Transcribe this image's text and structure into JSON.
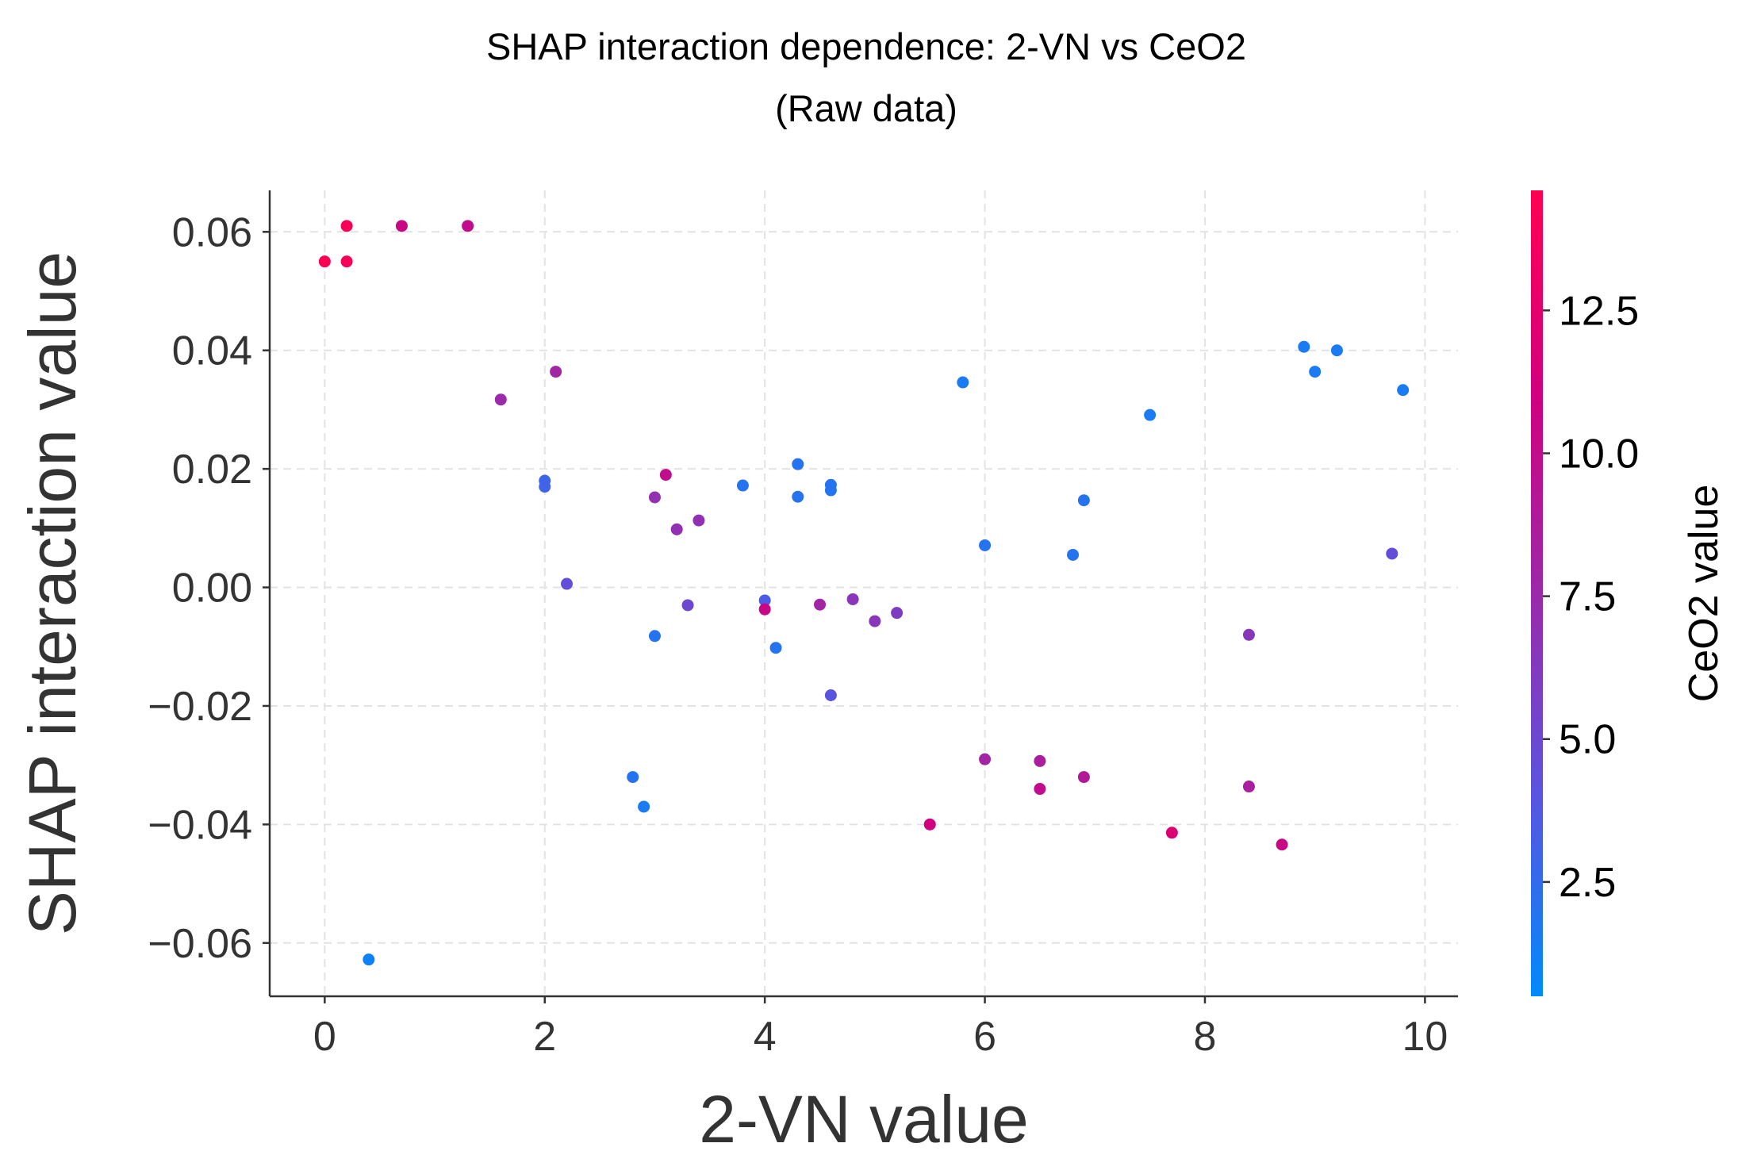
{
  "chart_data": {
    "type": "scatter",
    "title": "SHAP interaction dependence: 2-VN vs CeO2",
    "subtitle": "(Raw data)",
    "xlabel": "2-VN value",
    "ylabel": "SHAP interaction value",
    "xlim": [
      -0.5,
      10.3
    ],
    "ylim": [
      -0.069,
      0.067
    ],
    "x_ticks": [
      0,
      2,
      4,
      6,
      8,
      10
    ],
    "x_tick_labels": [
      "0",
      "2",
      "4",
      "6",
      "8",
      "10"
    ],
    "y_ticks": [
      0.06,
      0.04,
      0.02,
      0.0,
      -0.02,
      -0.04,
      -0.06
    ],
    "y_tick_labels": [
      "0.06",
      "0.04",
      "0.02",
      "0.00",
      "−0.02",
      "−0.04",
      "−0.06"
    ],
    "grid": true,
    "colorbar": {
      "label": "CeO2 value",
      "range": [
        0.5,
        14.6
      ],
      "ticks": [
        2.5,
        5.0,
        7.5,
        10.0,
        12.5
      ],
      "tick_labels": [
        "2.5",
        "5.0",
        "7.5",
        "10.0",
        "12.5"
      ],
      "colors": [
        "#008afb",
        "#5a54e0",
        "#9b2aa9",
        "#d1007e",
        "#ff0052"
      ]
    },
    "points": [
      {
        "x": 0.0,
        "y": 0.055,
        "c": 14.5
      },
      {
        "x": 0.2,
        "y": 0.061,
        "c": 14.0
      },
      {
        "x": 0.2,
        "y": 0.055,
        "c": 14.0
      },
      {
        "x": 0.7,
        "y": 0.061,
        "c": 10.5
      },
      {
        "x": 1.3,
        "y": 0.061,
        "c": 10.0
      },
      {
        "x": 0.4,
        "y": -0.0628,
        "c": 1.0
      },
      {
        "x": 1.6,
        "y": 0.0317,
        "c": 7.5
      },
      {
        "x": 2.1,
        "y": 0.0364,
        "c": 8.0
      },
      {
        "x": 2.0,
        "y": 0.018,
        "c": 3.0
      },
      {
        "x": 2.0,
        "y": 0.017,
        "c": 3.0
      },
      {
        "x": 2.2,
        "y": 0.0006,
        "c": 4.5
      },
      {
        "x": 2.8,
        "y": -0.032,
        "c": 2.0
      },
      {
        "x": 2.9,
        "y": -0.037,
        "c": 1.5
      },
      {
        "x": 3.0,
        "y": -0.0082,
        "c": 2.0
      },
      {
        "x": 3.0,
        "y": 0.0152,
        "c": 7.0
      },
      {
        "x": 3.1,
        "y": 0.019,
        "c": 10.0
      },
      {
        "x": 3.2,
        "y": 0.0098,
        "c": 7.0
      },
      {
        "x": 3.3,
        "y": -0.003,
        "c": 5.0
      },
      {
        "x": 3.4,
        "y": 0.0113,
        "c": 7.0
      },
      {
        "x": 3.8,
        "y": 0.0172,
        "c": 2.0
      },
      {
        "x": 4.0,
        "y": -0.0022,
        "c": 3.5
      },
      {
        "x": 4.0,
        "y": -0.0037,
        "c": 10.5
      },
      {
        "x": 4.1,
        "y": -0.0102,
        "c": 2.0
      },
      {
        "x": 4.3,
        "y": 0.0208,
        "c": 2.0
      },
      {
        "x": 4.3,
        "y": 0.0153,
        "c": 2.0
      },
      {
        "x": 4.6,
        "y": 0.0173,
        "c": 2.0
      },
      {
        "x": 4.6,
        "y": 0.0164,
        "c": 2.0
      },
      {
        "x": 4.6,
        "y": -0.0182,
        "c": 4.0
      },
      {
        "x": 4.5,
        "y": -0.0029,
        "c": 8.0
      },
      {
        "x": 4.8,
        "y": -0.002,
        "c": 6.5
      },
      {
        "x": 5.0,
        "y": -0.0057,
        "c": 6.5
      },
      {
        "x": 5.2,
        "y": -0.0043,
        "c": 6.0
      },
      {
        "x": 5.5,
        "y": -0.04,
        "c": 11.0
      },
      {
        "x": 5.8,
        "y": 0.0346,
        "c": 1.5
      },
      {
        "x": 6.0,
        "y": 0.0071,
        "c": 2.0
      },
      {
        "x": 6.0,
        "y": -0.029,
        "c": 8.0
      },
      {
        "x": 6.5,
        "y": -0.0293,
        "c": 8.5
      },
      {
        "x": 6.5,
        "y": -0.034,
        "c": 10.0
      },
      {
        "x": 6.8,
        "y": 0.0055,
        "c": 2.0
      },
      {
        "x": 6.9,
        "y": 0.0147,
        "c": 2.0
      },
      {
        "x": 6.9,
        "y": -0.032,
        "c": 9.0
      },
      {
        "x": 7.5,
        "y": 0.0291,
        "c": 1.5
      },
      {
        "x": 7.7,
        "y": -0.0414,
        "c": 12.0
      },
      {
        "x": 8.4,
        "y": -0.008,
        "c": 6.5
      },
      {
        "x": 8.4,
        "y": -0.0336,
        "c": 8.5
      },
      {
        "x": 8.7,
        "y": -0.0434,
        "c": 10.5
      },
      {
        "x": 8.9,
        "y": 0.0406,
        "c": 1.5
      },
      {
        "x": 9.0,
        "y": 0.0364,
        "c": 1.5
      },
      {
        "x": 9.2,
        "y": 0.04,
        "c": 1.5
      },
      {
        "x": 9.7,
        "y": 0.0057,
        "c": 4.5
      },
      {
        "x": 9.8,
        "y": 0.0333,
        "c": 1.5
      }
    ]
  }
}
